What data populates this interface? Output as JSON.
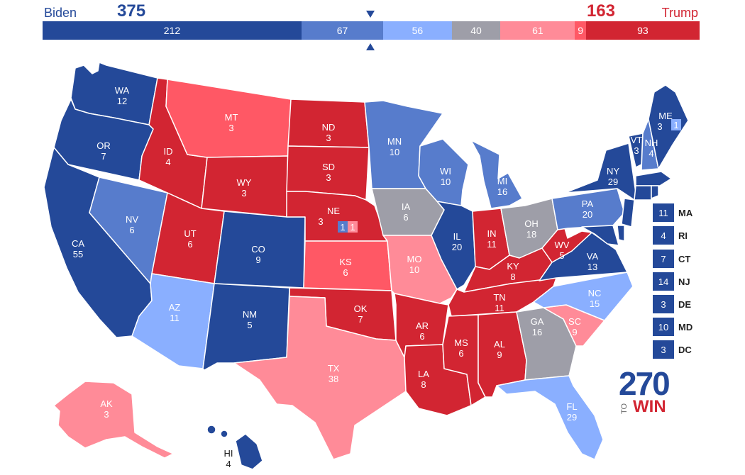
{
  "header": {
    "dem_name": "Biden",
    "dem_votes": "375",
    "rep_name": "Trump",
    "rep_votes": "163"
  },
  "colors": {
    "safe_dem": "#244999",
    "likely_dem": "#577ccc",
    "lean_dem": "#8aafff",
    "tossup": "#9e9ea8",
    "lean_rep": "#ff8b98",
    "likely_rep": "#ff5865",
    "safe_rep": "#d22532"
  },
  "tally": [
    {
      "value": 212,
      "label": "212",
      "rating": "safe_dem"
    },
    {
      "value": 67,
      "label": "67",
      "rating": "likely_dem"
    },
    {
      "value": 56,
      "label": "56",
      "rating": "lean_dem"
    },
    {
      "value": 40,
      "label": "40",
      "rating": "tossup"
    },
    {
      "value": 61,
      "label": "61",
      "rating": "lean_rep"
    },
    {
      "value": 9,
      "label": "9",
      "rating": "likely_rep"
    },
    {
      "value": 93,
      "label": "93",
      "rating": "safe_rep"
    }
  ],
  "states": [
    {
      "abbr": "WA",
      "ev": "12",
      "rating": "safe_dem"
    },
    {
      "abbr": "OR",
      "ev": "7",
      "rating": "safe_dem"
    },
    {
      "abbr": "CA",
      "ev": "55",
      "rating": "safe_dem"
    },
    {
      "abbr": "NV",
      "ev": "6",
      "rating": "likely_dem"
    },
    {
      "abbr": "ID",
      "ev": "4",
      "rating": "safe_rep"
    },
    {
      "abbr": "MT",
      "ev": "3",
      "rating": "likely_rep"
    },
    {
      "abbr": "WY",
      "ev": "3",
      "rating": "safe_rep"
    },
    {
      "abbr": "UT",
      "ev": "6",
      "rating": "safe_rep"
    },
    {
      "abbr": "AZ",
      "ev": "11",
      "rating": "lean_dem"
    },
    {
      "abbr": "CO",
      "ev": "9",
      "rating": "safe_dem"
    },
    {
      "abbr": "NM",
      "ev": "5",
      "rating": "safe_dem"
    },
    {
      "abbr": "ND",
      "ev": "3",
      "rating": "safe_rep"
    },
    {
      "abbr": "SD",
      "ev": "3",
      "rating": "safe_rep"
    },
    {
      "abbr": "NE",
      "ev": "3",
      "rating": "safe_rep"
    },
    {
      "abbr": "KS",
      "ev": "6",
      "rating": "likely_rep"
    },
    {
      "abbr": "OK",
      "ev": "7",
      "rating": "safe_rep"
    },
    {
      "abbr": "TX",
      "ev": "38",
      "rating": "lean_rep"
    },
    {
      "abbr": "MN",
      "ev": "10",
      "rating": "likely_dem"
    },
    {
      "abbr": "IA",
      "ev": "6",
      "rating": "tossup"
    },
    {
      "abbr": "MO",
      "ev": "10",
      "rating": "lean_rep"
    },
    {
      "abbr": "AR",
      "ev": "6",
      "rating": "safe_rep"
    },
    {
      "abbr": "LA",
      "ev": "8",
      "rating": "safe_rep"
    },
    {
      "abbr": "WI",
      "ev": "10",
      "rating": "likely_dem"
    },
    {
      "abbr": "IL",
      "ev": "20",
      "rating": "safe_dem"
    },
    {
      "abbr": "MI",
      "ev": "16",
      "rating": "likely_dem"
    },
    {
      "abbr": "IN",
      "ev": "11",
      "rating": "safe_rep"
    },
    {
      "abbr": "OH",
      "ev": "18",
      "rating": "tossup"
    },
    {
      "abbr": "KY",
      "ev": "8",
      "rating": "safe_rep"
    },
    {
      "abbr": "TN",
      "ev": "11",
      "rating": "safe_rep"
    },
    {
      "abbr": "MS",
      "ev": "6",
      "rating": "safe_rep"
    },
    {
      "abbr": "AL",
      "ev": "9",
      "rating": "safe_rep"
    },
    {
      "abbr": "GA",
      "ev": "16",
      "rating": "tossup"
    },
    {
      "abbr": "FL",
      "ev": "29",
      "rating": "lean_dem"
    },
    {
      "abbr": "SC",
      "ev": "9",
      "rating": "lean_rep"
    },
    {
      "abbr": "NC",
      "ev": "15",
      "rating": "lean_dem"
    },
    {
      "abbr": "VA",
      "ev": "13",
      "rating": "safe_dem"
    },
    {
      "abbr": "WV",
      "ev": "5",
      "rating": "safe_rep"
    },
    {
      "abbr": "PA",
      "ev": "20",
      "rating": "likely_dem"
    },
    {
      "abbr": "NY",
      "ev": "29",
      "rating": "safe_dem"
    },
    {
      "abbr": "VT",
      "ev": "3",
      "rating": "safe_dem"
    },
    {
      "abbr": "NH",
      "ev": "4",
      "rating": "likely_dem"
    },
    {
      "abbr": "ME",
      "ev": "3",
      "rating": "safe_dem"
    },
    {
      "abbr": "AK",
      "ev": "3",
      "rating": "lean_rep"
    },
    {
      "abbr": "HI",
      "ev": "4",
      "rating": "safe_dem"
    }
  ],
  "split_districts": {
    "me_cd2": "1",
    "ne_cd2": "1",
    "ne_cd1": "1"
  },
  "small_states": [
    {
      "ev": "11",
      "abbr": "MA"
    },
    {
      "ev": "4",
      "abbr": "RI"
    },
    {
      "ev": "7",
      "abbr": "CT"
    },
    {
      "ev": "14",
      "abbr": "NJ"
    },
    {
      "ev": "3",
      "abbr": "DE"
    },
    {
      "ev": "10",
      "abbr": "MD"
    },
    {
      "ev": "3",
      "abbr": "DC"
    }
  ],
  "logo": {
    "number": "270",
    "to": "TO",
    "win": "WIN"
  }
}
